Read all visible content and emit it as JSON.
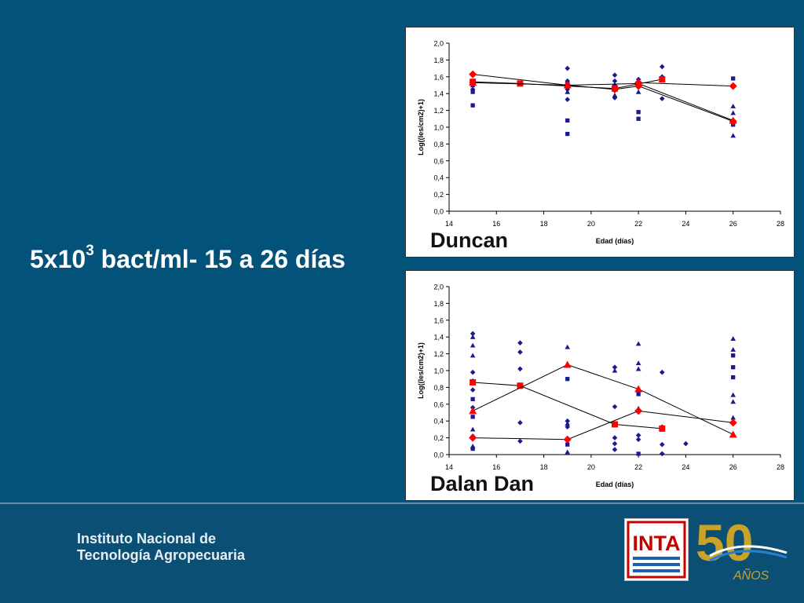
{
  "slide": {
    "title_main": "5x10",
    "title_sup": "3",
    "title_rest": " bact/ml- 15 a 26 días"
  },
  "footer": {
    "institution_line1": "Instituto Nacional de",
    "institution_line2": "Tecnología Agropecuaria",
    "inta_logo_text": "INTA",
    "anniversary_number": "50",
    "anniversary_word": "AÑOS"
  },
  "colors": {
    "navy": "#1a1a8c",
    "red": "#ff0000",
    "background": "#03527a"
  },
  "chart_data": [
    {
      "type": "scatter",
      "title": "Duncan",
      "xlabel": "Edad (días)",
      "ylabel": "Log((les/cm2)+1)",
      "xlim": [
        14,
        28
      ],
      "ylim": [
        0,
        2
      ],
      "x_ticks": [
        "14",
        "16",
        "18",
        "20",
        "22",
        "24",
        "26",
        "28"
      ],
      "y_ticks": [
        "0,0",
        "0,2",
        "0,4",
        "0,6",
        "0,8",
        "1,0",
        "1,2",
        "1,4",
        "1,6",
        "1,8",
        "2,0"
      ],
      "scatter_points": [
        {
          "shape": "diamond",
          "x": 15,
          "y": 1.62
        },
        {
          "shape": "diamond",
          "x": 15,
          "y": 1.55
        },
        {
          "shape": "diamond",
          "x": 15,
          "y": 1.45
        },
        {
          "shape": "square",
          "x": 15,
          "y": 1.26
        },
        {
          "shape": "square",
          "x": 15,
          "y": 1.42
        },
        {
          "shape": "triangle",
          "x": 15,
          "y": 1.5
        },
        {
          "shape": "diamond",
          "x": 19,
          "y": 1.7
        },
        {
          "shape": "diamond",
          "x": 19,
          "y": 1.55
        },
        {
          "shape": "diamond",
          "x": 19,
          "y": 1.45
        },
        {
          "shape": "diamond",
          "x": 19,
          "y": 1.33
        },
        {
          "shape": "square",
          "x": 19,
          "y": 1.08
        },
        {
          "shape": "square",
          "x": 19,
          "y": 0.92
        },
        {
          "shape": "triangle",
          "x": 19,
          "y": 1.55
        },
        {
          "shape": "triangle",
          "x": 19,
          "y": 1.42
        },
        {
          "shape": "diamond",
          "x": 21,
          "y": 1.62
        },
        {
          "shape": "diamond",
          "x": 21,
          "y": 1.55
        },
        {
          "shape": "diamond",
          "x": 21,
          "y": 1.5
        },
        {
          "shape": "diamond",
          "x": 21,
          "y": 1.35
        },
        {
          "shape": "triangle",
          "x": 21,
          "y": 1.38
        },
        {
          "shape": "diamond",
          "x": 22,
          "y": 1.57
        },
        {
          "shape": "square",
          "x": 22,
          "y": 1.18
        },
        {
          "shape": "square",
          "x": 22,
          "y": 1.1
        },
        {
          "shape": "triangle",
          "x": 22,
          "y": 1.42
        },
        {
          "shape": "diamond",
          "x": 23,
          "y": 1.72
        },
        {
          "shape": "diamond",
          "x": 23,
          "y": 1.6
        },
        {
          "shape": "diamond",
          "x": 23,
          "y": 1.34
        },
        {
          "shape": "square",
          "x": 26,
          "y": 1.58
        },
        {
          "shape": "triangle",
          "x": 26,
          "y": 1.25
        },
        {
          "shape": "triangle",
          "x": 26,
          "y": 1.17
        },
        {
          "shape": "square",
          "x": 26,
          "y": 1.03
        },
        {
          "shape": "triangle",
          "x": 26,
          "y": 0.9
        }
      ],
      "series": [
        {
          "marker": "diamond",
          "x": [
            15,
            19,
            21,
            22,
            26
          ],
          "y": [
            1.63,
            1.5,
            1.45,
            1.49,
            1.07
          ]
        },
        {
          "marker": "square",
          "x": [
            15,
            17,
            21,
            23
          ],
          "y": [
            1.54,
            1.52,
            1.46,
            1.57
          ]
        },
        {
          "marker": "triangle",
          "x": [
            15,
            19,
            22,
            26
          ],
          "y": [
            1.53,
            1.5,
            1.52,
            1.08
          ]
        },
        {
          "marker": "diamond",
          "x": [
            22,
            26
          ],
          "y": [
            1.53,
            1.49
          ]
        }
      ]
    },
    {
      "type": "scatter",
      "title": "Dalan Dan",
      "xlabel": "Edad (días)",
      "ylabel": "Log((les/cm2)+1)",
      "xlim": [
        14,
        28
      ],
      "ylim": [
        0,
        2
      ],
      "x_ticks": [
        "14",
        "16",
        "18",
        "20",
        "22",
        "24",
        "26",
        "28"
      ],
      "y_ticks": [
        "0,0",
        "0,2",
        "0,4",
        "0,6",
        "0,8",
        "1,0",
        "1,2",
        "1,4",
        "1,6",
        "1,8",
        "2,0"
      ],
      "scatter_points": [
        {
          "shape": "diamond",
          "x": 15,
          "y": 1.44
        },
        {
          "shape": "triangle",
          "x": 15,
          "y": 1.4
        },
        {
          "shape": "triangle",
          "x": 15,
          "y": 1.3
        },
        {
          "shape": "triangle",
          "x": 15,
          "y": 1.18
        },
        {
          "shape": "diamond",
          "x": 15,
          "y": 0.98
        },
        {
          "shape": "triangle",
          "x": 15,
          "y": 0.88
        },
        {
          "shape": "diamond",
          "x": 15,
          "y": 0.77
        },
        {
          "shape": "square",
          "x": 15,
          "y": 0.66
        },
        {
          "shape": "diamond",
          "x": 15,
          "y": 0.56
        },
        {
          "shape": "square",
          "x": 15,
          "y": 0.45
        },
        {
          "shape": "triangle",
          "x": 15,
          "y": 0.3
        },
        {
          "shape": "diamond",
          "x": 15,
          "y": 0.22
        },
        {
          "shape": "triangle",
          "x": 15,
          "y": 0.1
        },
        {
          "shape": "square",
          "x": 15,
          "y": 0.07
        },
        {
          "shape": "diamond",
          "x": 17,
          "y": 1.33
        },
        {
          "shape": "diamond",
          "x": 17,
          "y": 1.22
        },
        {
          "shape": "diamond",
          "x": 17,
          "y": 1.02
        },
        {
          "shape": "diamond",
          "x": 17,
          "y": 0.38
        },
        {
          "shape": "diamond",
          "x": 17,
          "y": 0.16
        },
        {
          "shape": "triangle",
          "x": 19,
          "y": 1.28
        },
        {
          "shape": "square",
          "x": 19,
          "y": 0.9
        },
        {
          "shape": "diamond",
          "x": 19,
          "y": 0.4
        },
        {
          "shape": "triangle",
          "x": 19,
          "y": 0.37
        },
        {
          "shape": "diamond",
          "x": 19,
          "y": 0.33
        },
        {
          "shape": "square",
          "x": 19,
          "y": 0.12
        },
        {
          "shape": "triangle",
          "x": 19,
          "y": 0.03
        },
        {
          "shape": "diamond",
          "x": 21,
          "y": 1.04
        },
        {
          "shape": "triangle",
          "x": 21,
          "y": 1.0
        },
        {
          "shape": "diamond",
          "x": 21,
          "y": 0.57
        },
        {
          "shape": "diamond",
          "x": 21,
          "y": 0.2
        },
        {
          "shape": "diamond",
          "x": 21,
          "y": 0.13
        },
        {
          "shape": "diamond",
          "x": 21,
          "y": 0.06
        },
        {
          "shape": "triangle",
          "x": 22,
          "y": 1.32
        },
        {
          "shape": "triangle",
          "x": 22,
          "y": 1.09
        },
        {
          "shape": "triangle",
          "x": 22,
          "y": 1.02
        },
        {
          "shape": "square",
          "x": 22,
          "y": 0.72
        },
        {
          "shape": "triangle",
          "x": 22,
          "y": 0.55
        },
        {
          "shape": "diamond",
          "x": 22,
          "y": 0.23
        },
        {
          "shape": "diamond",
          "x": 22,
          "y": 0.18
        },
        {
          "shape": "square",
          "x": 22,
          "y": 0.01
        },
        {
          "shape": "diamond",
          "x": 23,
          "y": 0.98
        },
        {
          "shape": "diamond",
          "x": 23,
          "y": 0.33
        },
        {
          "shape": "diamond",
          "x": 23,
          "y": 0.12
        },
        {
          "shape": "diamond",
          "x": 23,
          "y": 0.01
        },
        {
          "shape": "diamond",
          "x": 24,
          "y": 0.13
        },
        {
          "shape": "triangle",
          "x": 26,
          "y": 1.38
        },
        {
          "shape": "triangle",
          "x": 26,
          "y": 1.25
        },
        {
          "shape": "square",
          "x": 26,
          "y": 1.18
        },
        {
          "shape": "square",
          "x": 26,
          "y": 1.04
        },
        {
          "shape": "square",
          "x": 26,
          "y": 0.92
        },
        {
          "shape": "triangle",
          "x": 26,
          "y": 0.71
        },
        {
          "shape": "triangle",
          "x": 26,
          "y": 0.63
        },
        {
          "shape": "triangle",
          "x": 26,
          "y": 0.44
        }
      ],
      "series": [
        {
          "marker": "square",
          "x": [
            15,
            17,
            21,
            23
          ],
          "y": [
            0.86,
            0.82,
            0.36,
            0.31
          ]
        },
        {
          "marker": "triangle",
          "x": [
            15,
            19,
            22,
            26
          ],
          "y": [
            0.52,
            1.07,
            0.78,
            0.24
          ]
        },
        {
          "marker": "diamond",
          "x": [
            15,
            19,
            22,
            26
          ],
          "y": [
            0.2,
            0.18,
            0.52,
            0.38
          ]
        }
      ]
    }
  ]
}
